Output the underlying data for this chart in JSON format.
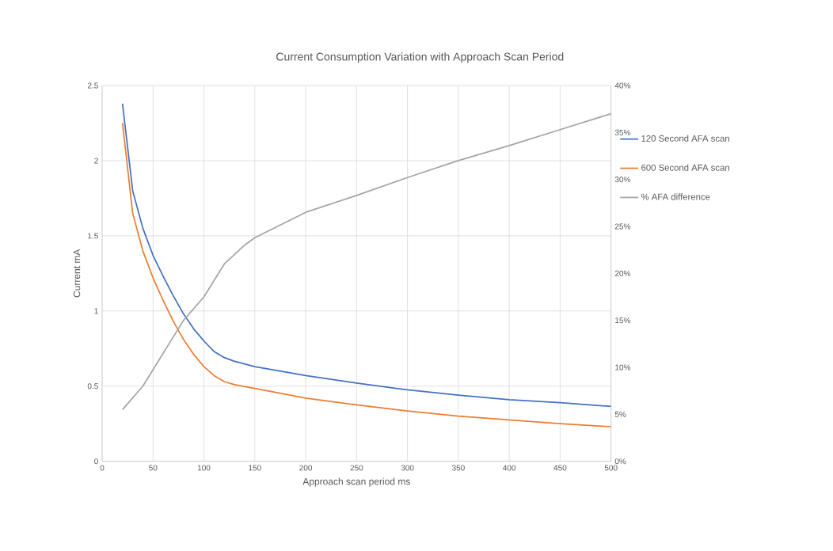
{
  "chart_data": {
    "type": "line",
    "title": "Current Consumption Variation with Approach Scan Period",
    "xlabel": "Approach scan period ms",
    "ylabel": "Current mA",
    "xlim": [
      0,
      500
    ],
    "xticks": [
      0,
      50,
      100,
      150,
      200,
      250,
      300,
      350,
      400,
      450,
      500
    ],
    "ylim": [
      0,
      2.5
    ],
    "yticks": [
      0,
      0.5,
      1,
      1.5,
      2,
      2.5
    ],
    "y2lim": [
      0,
      40
    ],
    "y2ticks": [
      {
        "value": 0,
        "label": "0%"
      },
      {
        "value": 5,
        "label": "5%"
      },
      {
        "value": 10,
        "label": "10%"
      },
      {
        "value": 15,
        "label": "15%"
      },
      {
        "value": 20,
        "label": "20%"
      },
      {
        "value": 25,
        "label": "25%"
      },
      {
        "value": 30,
        "label": "30%"
      },
      {
        "value": 35,
        "label": "35%"
      },
      {
        "value": 40,
        "label": "40%"
      }
    ],
    "grid": true,
    "legend": "right",
    "marker": "none",
    "line_style": "solid",
    "x": [
      20,
      30,
      40,
      50,
      60,
      70,
      80,
      90,
      100,
      110,
      120,
      130,
      150,
      200,
      250,
      300,
      350,
      400,
      450,
      500
    ],
    "series": [
      {
        "name": "120 Second AFA scan",
        "color": "#4472c4",
        "values": [
          2.38,
          1.8,
          1.55,
          1.37,
          1.23,
          1.1,
          0.98,
          0.88,
          0.8,
          0.73,
          0.69,
          0.665,
          0.63,
          0.57,
          0.52,
          0.475,
          0.44,
          0.41,
          0.39,
          0.365
        ]
      },
      {
        "name": "600 Second AFA scan",
        "color": "#ed7d31",
        "values": [
          2.25,
          1.65,
          1.4,
          1.22,
          1.07,
          0.93,
          0.81,
          0.71,
          0.63,
          0.57,
          0.53,
          0.51,
          0.485,
          0.42,
          0.375,
          0.335,
          0.3,
          0.275,
          0.25,
          0.23
        ]
      },
      {
        "name": "% AFA difference",
        "color": "#a5a5a5",
        "axis": "y2",
        "x": [
          20,
          40,
          60,
          80,
          100,
          120,
          140,
          150,
          200,
          250,
          300,
          350,
          400,
          450,
          500
        ],
        "values": [
          5.5,
          8,
          11.5,
          15,
          17.5,
          21,
          23,
          23.8,
          26.5,
          28.3,
          30.2,
          32,
          33.6,
          35.3,
          37
        ]
      }
    ]
  }
}
